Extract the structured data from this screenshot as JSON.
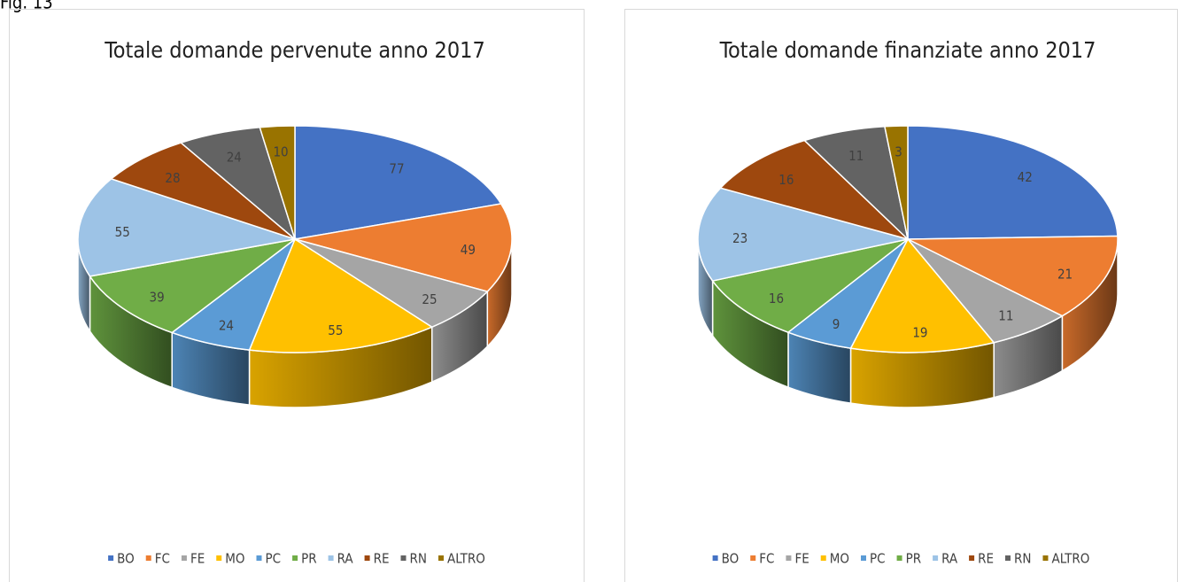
{
  "caption": "Fig. 13",
  "chart_data": [
    {
      "type": "pie",
      "title": "Totale domande pervenute anno 2017",
      "categories": [
        "BO",
        "FC",
        "FE",
        "MO",
        "PC",
        "PR",
        "RA",
        "RE",
        "RN",
        "ALTRO"
      ],
      "values": [
        77,
        49,
        25,
        55,
        24,
        39,
        55,
        28,
        24,
        10
      ],
      "colors": [
        "#4472c4",
        "#ed7d31",
        "#a5a5a5",
        "#ffc000",
        "#5b9bd5",
        "#70ad47",
        "#9dc3e6",
        "#9e480e",
        "#636363",
        "#997300"
      ],
      "legend": "bottom"
    },
    {
      "type": "pie",
      "title": "Totale domande finanziate anno 2017",
      "categories": [
        "BO",
        "FC",
        "FE",
        "MO",
        "PC",
        "PR",
        "RA",
        "RE",
        "RN",
        "ALTRO"
      ],
      "values": [
        42,
        21,
        11,
        19,
        9,
        16,
        23,
        16,
        11,
        3
      ],
      "colors": [
        "#4472c4",
        "#ed7d31",
        "#a5a5a5",
        "#ffc000",
        "#5b9bd5",
        "#70ad47",
        "#9dc3e6",
        "#9e480e",
        "#636363",
        "#997300"
      ],
      "legend": "bottom"
    }
  ]
}
